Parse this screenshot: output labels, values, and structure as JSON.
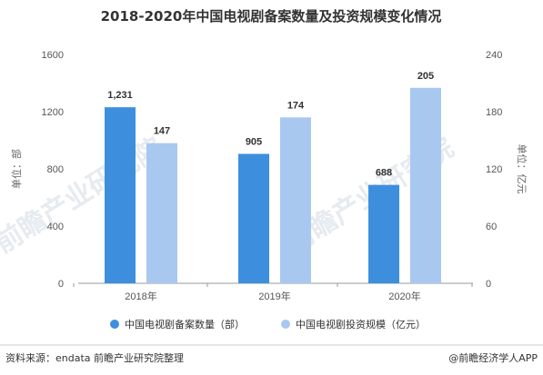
{
  "chart_data": {
    "type": "bar",
    "title": "2018-2020年中国电视剧备案数量及投资规模变化情况",
    "categories": [
      "2018年",
      "2019年",
      "2020年"
    ],
    "series": [
      {
        "name": "中国电视剧备案数量（部）",
        "values": [
          1231,
          905,
          688
        ],
        "labels": [
          "1,231",
          "905",
          "688"
        ],
        "axis": "left",
        "color": "#3d8fde"
      },
      {
        "name": "中国电视剧投资规模（亿元）",
        "values": [
          147,
          174,
          205
        ],
        "labels": [
          "147",
          "174",
          "205"
        ],
        "axis": "right",
        "color": "#a8c8f0"
      }
    ],
    "y_left": {
      "label": "单位：部",
      "ylim": [
        0,
        1600
      ],
      "ticks": [
        "0",
        "400",
        "800",
        "1200",
        "1600"
      ]
    },
    "y_right": {
      "label": "单位：亿元",
      "ylim": [
        0,
        240
      ],
      "ticks": [
        "0",
        "60",
        "120",
        "180",
        "240"
      ]
    },
    "grid": false,
    "legend_position": "bottom"
  },
  "footer": {
    "source": "资料来源：endata 前瞻产业研究院整理",
    "credit": "@前瞻经济学人APP"
  },
  "watermark": {
    "text": "前瞻产业研究院"
  }
}
